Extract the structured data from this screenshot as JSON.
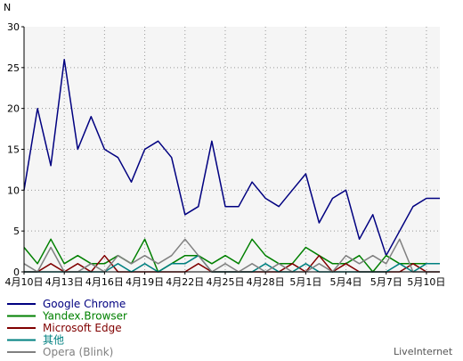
{
  "chart_data": {
    "type": "line",
    "ylabel": "N",
    "ylim": [
      0,
      30
    ],
    "yticks": [
      0,
      5,
      10,
      15,
      20,
      25,
      30
    ],
    "x": [
      "4月10日",
      "4月11日",
      "4月12日",
      "4月13日",
      "4月14日",
      "4月15日",
      "4月16日",
      "4月17日",
      "4月18日",
      "4月19日",
      "4月20日",
      "4月21日",
      "4月22日",
      "4月23日",
      "4月24日",
      "4月25日",
      "4月26日",
      "4月27日",
      "4月28日",
      "4月29日",
      "4月30日",
      "5月1日",
      "5月2日",
      "5月3日",
      "5月4日",
      "5月5日",
      "5月6日",
      "5月7日",
      "5月8日",
      "5月9日",
      "5月10日",
      "5月11日"
    ],
    "xtick_labels": [
      "4月10日",
      "4月13日",
      "4月16日",
      "4月19日",
      "4月22日",
      "4月25日",
      "4月28日",
      "5月1日",
      "5月4日",
      "5月7日",
      "5月10日"
    ],
    "xtick_index": [
      0,
      3,
      6,
      9,
      12,
      15,
      18,
      21,
      24,
      27,
      30
    ],
    "grid": true,
    "legend_position": "bottom-left",
    "series": [
      {
        "name": "Google Chrome",
        "color": "#000080",
        "values": [
          10,
          20,
          13,
          26,
          15,
          19,
          15,
          14,
          11,
          15,
          16,
          14,
          7,
          8,
          16,
          8,
          8,
          11,
          9,
          8,
          10,
          12,
          6,
          9,
          10,
          4,
          7,
          2,
          5,
          8,
          9,
          9
        ]
      },
      {
        "name": "Yandex.Browser",
        "color": "#008000",
        "values": [
          3,
          1,
          4,
          1,
          2,
          1,
          1,
          2,
          1,
          4,
          0,
          1,
          2,
          2,
          1,
          2,
          1,
          4,
          2,
          1,
          1,
          3,
          2,
          1,
          1,
          2,
          0,
          2,
          1,
          1,
          1,
          1
        ]
      },
      {
        "name": "Microsoft Edge",
        "color": "#800000",
        "values": [
          0,
          0,
          1,
          0,
          1,
          0,
          2,
          0,
          0,
          0,
          0,
          0,
          0,
          1,
          0,
          0,
          0,
          0,
          0,
          0,
          1,
          0,
          2,
          0,
          1,
          0,
          0,
          0,
          0,
          1,
          0,
          0
        ]
      },
      {
        "name": "其他",
        "color": "#008080",
        "values": [
          0,
          0,
          0,
          0,
          0,
          0,
          0,
          1,
          0,
          1,
          0,
          1,
          1,
          2,
          0,
          0,
          0,
          0,
          1,
          0,
          0,
          1,
          0,
          0,
          0,
          0,
          0,
          0,
          1,
          0,
          1,
          1
        ]
      },
      {
        "name": "Opera (Blink)",
        "color": "#808080",
        "values": [
          1,
          0,
          3,
          0,
          0,
          1,
          0,
          2,
          1,
          2,
          1,
          2,
          4,
          2,
          0,
          1,
          0,
          1,
          0,
          1,
          0,
          0,
          1,
          0,
          2,
          1,
          2,
          1,
          4,
          0,
          0,
          0
        ]
      }
    ]
  },
  "brand": "LiveInternet"
}
